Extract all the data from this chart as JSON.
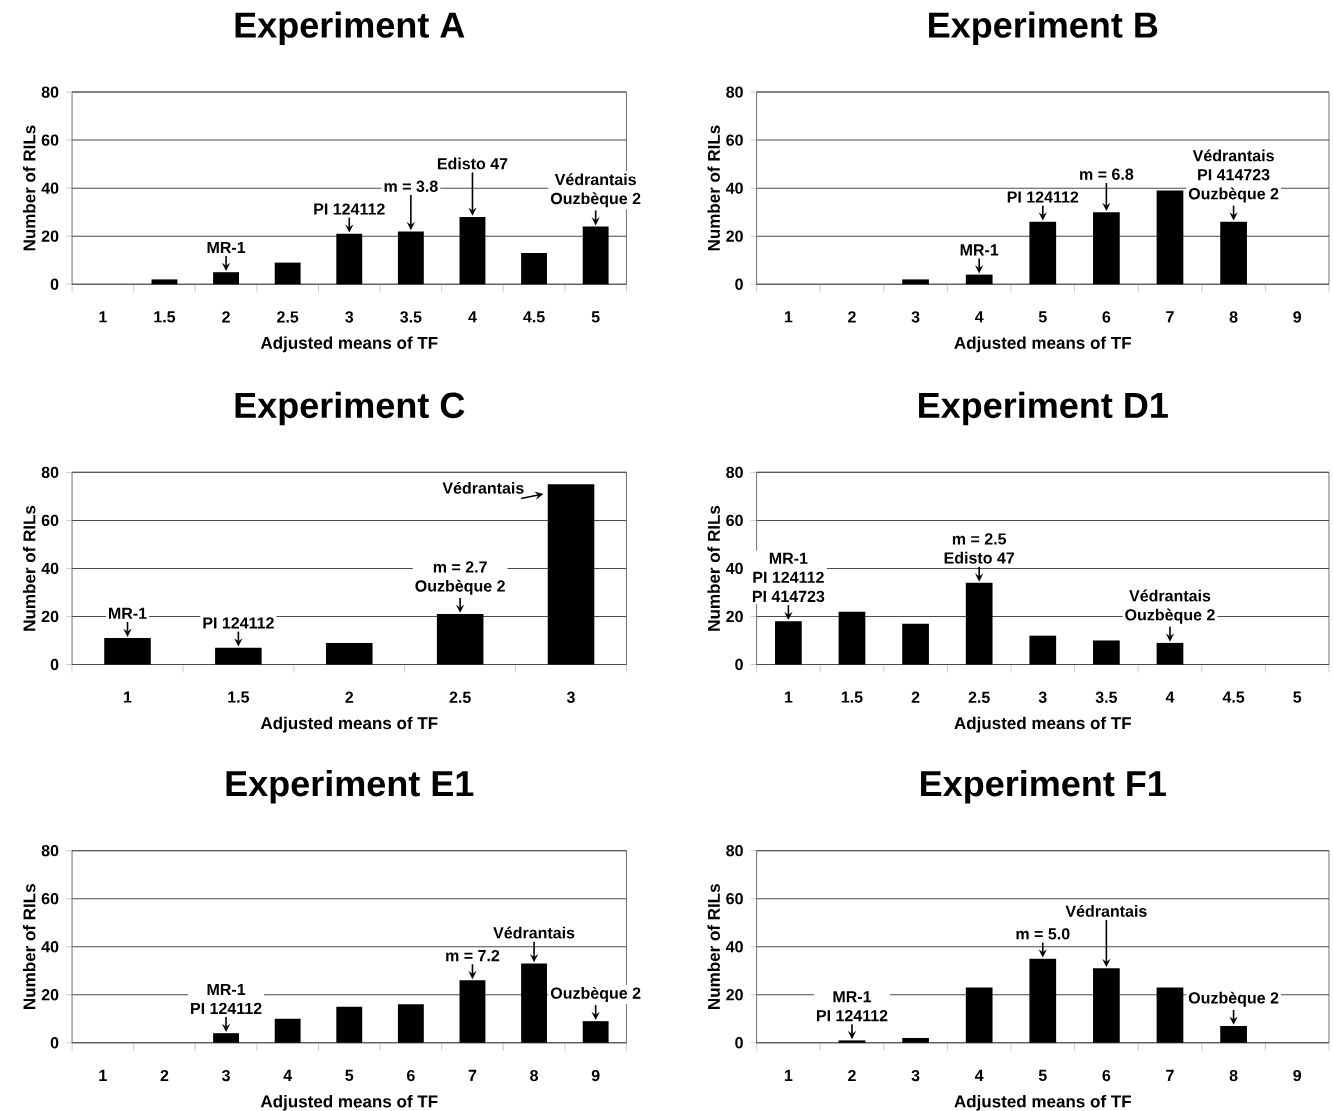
{
  "chart_data": [
    {
      "type": "bar",
      "title": "Experiment A",
      "xlabel": "Adjusted means of TF",
      "ylabel": "Number of RILs",
      "categories": [
        "1",
        "1.5",
        "2",
        "2.5",
        "3",
        "3.5",
        "4",
        "4.5",
        "5"
      ],
      "values": [
        0,
        2,
        5,
        9,
        21,
        22,
        28,
        13,
        24
      ],
      "color": "#000000",
      "ylim": [
        0,
        80
      ],
      "yticks": [
        0,
        20,
        40,
        60,
        80
      ],
      "grid": "y",
      "annotations": [
        {
          "text": "MR-1",
          "x": "2",
          "y": 5
        },
        {
          "text": "PI 124112",
          "x": "3",
          "y": 21
        },
        {
          "text": "m = 3.8",
          "x": "3.5",
          "y": 22
        },
        {
          "text": "Edisto 47",
          "x": "4",
          "y": 28
        },
        "Védrantais",
        {
          "text": "Ouzbèque 2",
          "x": "5",
          "y": 24
        }
      ]
    },
    {
      "type": "bar",
      "title": "Experiment B",
      "xlabel": "Adjusted means of TF",
      "ylabel": "Number of RILs",
      "categories": [
        "1",
        "2",
        "3",
        "4",
        "5",
        "6",
        "7",
        "8",
        "9"
      ],
      "values": [
        0,
        0,
        2,
        4,
        26,
        30,
        39,
        26,
        0
      ],
      "color": "#000000",
      "ylim": [
        0,
        80
      ],
      "yticks": [
        0,
        20,
        40,
        60,
        80
      ],
      "grid": "y",
      "annotations": [
        {
          "text": "MR-1",
          "x": "4",
          "y": 4
        },
        {
          "text": "PI 124112",
          "x": "5",
          "y": 26
        },
        {
          "text": "m = 6.8",
          "x": "6",
          "y": 30
        },
        "Védrantais",
        "PI 414723",
        {
          "text": "Ouzbèque 2",
          "x": "8",
          "y": 26
        }
      ]
    },
    {
      "type": "bar",
      "title": "Experiment C",
      "xlabel": "Adjusted means of TF",
      "ylabel": "Number of RILs",
      "categories": [
        "1",
        "1.5",
        "2",
        "2.5",
        "3"
      ],
      "values": [
        11,
        7,
        9,
        21,
        75
      ],
      "color": "#000000",
      "ylim": [
        0,
        80
      ],
      "yticks": [
        0,
        20,
        40,
        60,
        80
      ],
      "grid": "y",
      "annotations": [
        {
          "text": "MR-1",
          "x": "1",
          "y": 11
        },
        {
          "text": "PI 124112",
          "x": "1.5",
          "y": 7
        },
        "m = 2.7",
        {
          "text": "Ouzbèque 2",
          "x": "2.5",
          "y": 21
        },
        {
          "text": "Védrantais",
          "x": "3",
          "y": 75
        }
      ]
    },
    {
      "type": "bar",
      "title": "Experiment D1",
      "xlabel": "Adjusted means of TF",
      "ylabel": "Number of RILs",
      "categories": [
        "1",
        "1.5",
        "2",
        "2.5",
        "3",
        "3.5",
        "4",
        "4.5",
        "5"
      ],
      "values": [
        18,
        22,
        17,
        34,
        12,
        10,
        9,
        0,
        0
      ],
      "color": "#000000",
      "ylim": [
        0,
        80
      ],
      "yticks": [
        0,
        20,
        40,
        60,
        80
      ],
      "grid": "y",
      "annotations": [
        "MR-1",
        "PI 124112",
        {
          "text": "PI 414723",
          "x": "1",
          "y": 18
        },
        "m = 2.5",
        {
          "text": "Edisto 47",
          "x": "2.5",
          "y": 34
        },
        "Védrantais",
        {
          "text": "Ouzbèque 2",
          "x": "4",
          "y": 9
        }
      ]
    },
    {
      "type": "bar",
      "title": "Experiment E1",
      "xlabel": "Adjusted means of TF",
      "ylabel": "Number of RILs",
      "categories": [
        "1",
        "2",
        "3",
        "4",
        "5",
        "6",
        "7",
        "8",
        "9"
      ],
      "values": [
        0,
        0,
        4,
        10,
        15,
        16,
        26,
        33,
        9
      ],
      "color": "#000000",
      "ylim": [
        0,
        80
      ],
      "yticks": [
        0,
        20,
        40,
        60,
        80
      ],
      "grid": "y",
      "annotations": [
        "MR-1",
        {
          "text": "PI 124112",
          "x": "3",
          "y": 4
        },
        {
          "text": "m = 7.2",
          "x": "7",
          "y": 26
        },
        {
          "text": "Védrantais",
          "x": "8",
          "y": 33
        },
        {
          "text": "Ouzbèque 2",
          "x": "9",
          "y": 9
        }
      ]
    },
    {
      "type": "bar",
      "title": "Experiment F1",
      "xlabel": "Adjusted means of TF",
      "ylabel": "Number of RILs",
      "categories": [
        "1",
        "2",
        "3",
        "4",
        "5",
        "6",
        "7",
        "8",
        "9"
      ],
      "values": [
        0,
        1,
        2,
        23,
        35,
        31,
        23,
        7,
        0
      ],
      "color": "#000000",
      "ylim": [
        0,
        80
      ],
      "yticks": [
        0,
        20,
        40,
        60,
        80
      ],
      "grid": "y",
      "annotations": [
        "MR-1",
        {
          "text": "PI 124112",
          "x": "2",
          "y": 1
        },
        {
          "text": "m = 5.0",
          "x": "5",
          "y": 35
        },
        {
          "text": "Védrantais",
          "x": "6",
          "y": 31
        },
        {
          "text": "Ouzbèque 2",
          "x": "8",
          "y": 7
        }
      ]
    }
  ]
}
